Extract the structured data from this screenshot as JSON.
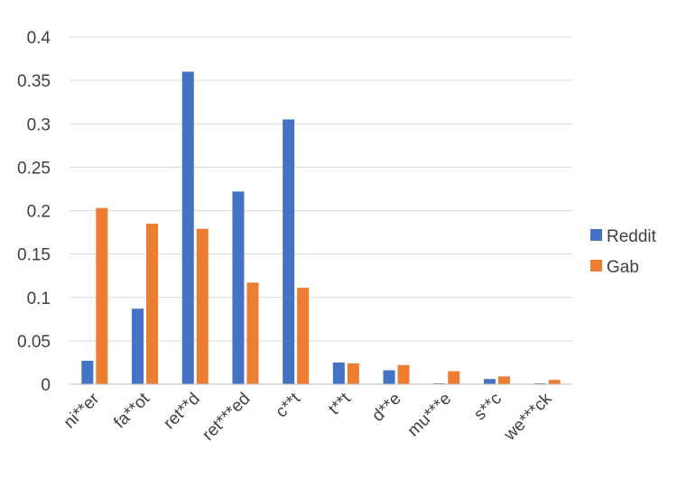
{
  "chart_data": {
    "type": "bar",
    "categories": [
      "ni**er",
      "fa**ot",
      "ret**d",
      "ret***ed",
      "c**t",
      "t**t",
      "d**e",
      "mu***e",
      "s**c",
      "we***ck"
    ],
    "series": [
      {
        "name": "Reddit",
        "color": "#4472C4",
        "values": [
          0.027,
          0.087,
          0.36,
          0.222,
          0.305,
          0.025,
          0.016,
          0.001,
          0.006,
          0.001
        ]
      },
      {
        "name": "Gab",
        "color": "#ED7D31",
        "values": [
          0.203,
          0.185,
          0.179,
          0.117,
          0.111,
          0.024,
          0.022,
          0.015,
          0.009,
          0.005
        ]
      }
    ],
    "yticks": [
      "0",
      "0.05",
      "0.1",
      "0.15",
      "0.2",
      "0.25",
      "0.3",
      "0.35",
      "0.4"
    ],
    "ylim": [
      0,
      0.4
    ],
    "grid": true,
    "legend": "right"
  }
}
